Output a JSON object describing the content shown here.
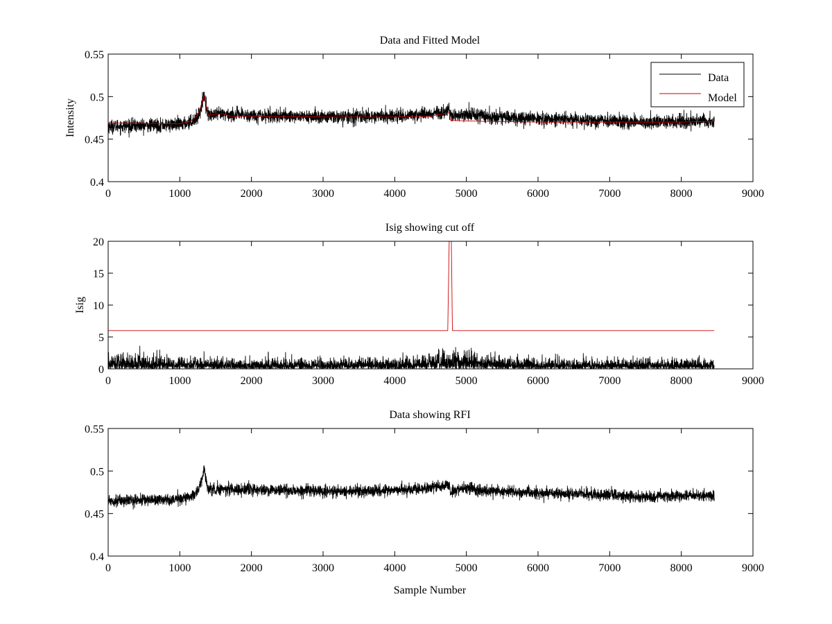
{
  "figure": {
    "background": "#ffffff",
    "data_color": "#000000",
    "model_color": "#cc0000"
  },
  "chart_data": [
    {
      "type": "line",
      "title": "Data and Fitted Model",
      "xlabel": "",
      "ylabel": "Intensity",
      "xlim": [
        0,
        9000
      ],
      "ylim": [
        0.4,
        0.55
      ],
      "xticks": [
        0,
        1000,
        2000,
        3000,
        4000,
        5000,
        6000,
        7000,
        8000,
        9000
      ],
      "yticks": [
        0.4,
        0.45,
        0.5,
        0.55
      ],
      "xtick_labels": [
        "0",
        "1000",
        "2000",
        "3000",
        "4000",
        "5000",
        "6000",
        "7000",
        "8000",
        "9000"
      ],
      "ytick_labels": [
        "0.4",
        "0.45",
        "0.5",
        "0.55"
      ],
      "grid": false,
      "legend": {
        "placement": "top-right",
        "entries": [
          "Data",
          "Model"
        ]
      },
      "series": [
        {
          "name": "Data",
          "color": "#000000",
          "style": "noisy",
          "noise": 0.007,
          "x_range": [
            0,
            8460
          ],
          "envelope": [
            [
              0,
              0.465
            ],
            [
              500,
              0.466
            ],
            [
              1000,
              0.467
            ],
            [
              1150,
              0.47
            ],
            [
              1250,
              0.476
            ],
            [
              1300,
              0.487
            ],
            [
              1340,
              0.503
            ],
            [
              1370,
              0.488
            ],
            [
              1400,
              0.478
            ],
            [
              1600,
              0.479
            ],
            [
              2000,
              0.478
            ],
            [
              3000,
              0.476
            ],
            [
              4000,
              0.477
            ],
            [
              4500,
              0.48
            ],
            [
              4760,
              0.484
            ],
            [
              4780,
              0.476
            ],
            [
              5000,
              0.48
            ],
            [
              5200,
              0.477
            ],
            [
              6000,
              0.474
            ],
            [
              7000,
              0.472
            ],
            [
              7500,
              0.469
            ],
            [
              8000,
              0.471
            ],
            [
              8460,
              0.471
            ]
          ]
        },
        {
          "name": "Model",
          "color": "#cc0000",
          "style": "smooth",
          "x_range": [
            0,
            8460
          ],
          "envelope": [
            [
              0,
              0.469
            ],
            [
              1000,
              0.468
            ],
            [
              1150,
              0.471
            ],
            [
              1250,
              0.478
            ],
            [
              1300,
              0.49
            ],
            [
              1340,
              0.501
            ],
            [
              1370,
              0.488
            ],
            [
              1400,
              0.478
            ],
            [
              1600,
              0.48
            ],
            [
              1700,
              0.477
            ],
            [
              2000,
              0.477
            ],
            [
              3000,
              0.476
            ],
            [
              4000,
              0.476
            ],
            [
              4500,
              0.477
            ],
            [
              4760,
              0.481
            ],
            [
              4780,
              0.472
            ],
            [
              5200,
              0.471
            ],
            [
              6000,
              0.47
            ],
            [
              7000,
              0.47
            ],
            [
              8000,
              0.47
            ],
            [
              8460,
              0.471
            ]
          ]
        }
      ]
    },
    {
      "type": "line",
      "title": "Isig showing cut off",
      "xlabel": "",
      "ylabel": "Isig",
      "xlim": [
        0,
        9000
      ],
      "ylim": [
        0,
        20
      ],
      "xticks": [
        0,
        1000,
        2000,
        3000,
        4000,
        5000,
        6000,
        7000,
        8000,
        9000
      ],
      "yticks": [
        0,
        5,
        10,
        15,
        20
      ],
      "xtick_labels": [
        "0",
        "1000",
        "2000",
        "3000",
        "4000",
        "5000",
        "6000",
        "7000",
        "8000",
        "9000"
      ],
      "ytick_labels": [
        "0",
        "5",
        "10",
        "15",
        "20"
      ],
      "grid": false,
      "series": [
        {
          "color": "#000000",
          "style": "abs_noise",
          "noise": 0.9,
          "x_range": [
            0,
            8460
          ],
          "envelope": [
            [
              0,
              1.1
            ],
            [
              1000,
              0.9
            ],
            [
              2000,
              0.7
            ],
            [
              3000,
              0.7
            ],
            [
              4000,
              0.8
            ],
            [
              4600,
              1.1
            ],
            [
              5000,
              1.6
            ],
            [
              5300,
              1.0
            ],
            [
              6000,
              0.8
            ],
            [
              7000,
              0.7
            ],
            [
              8460,
              0.7
            ]
          ]
        },
        {
          "color": "#cc0000",
          "style": "polyline",
          "points": [
            [
              0,
              6
            ],
            [
              4740,
              6
            ],
            [
              4760,
              20
            ],
            [
              4790,
              20
            ],
            [
              4805,
              6
            ],
            [
              8460,
              6
            ]
          ]
        }
      ]
    },
    {
      "type": "line",
      "title": "Data showing RFI",
      "xlabel": "Sample Number",
      "ylabel": "",
      "xlim": [
        0,
        9000
      ],
      "ylim": [
        0.4,
        0.55
      ],
      "xticks": [
        0,
        1000,
        2000,
        3000,
        4000,
        5000,
        6000,
        7000,
        8000,
        9000
      ],
      "yticks": [
        0.4,
        0.45,
        0.5,
        0.55
      ],
      "xtick_labels": [
        "0",
        "1000",
        "2000",
        "3000",
        "4000",
        "5000",
        "6000",
        "7000",
        "8000",
        "9000"
      ],
      "ytick_labels": [
        "0.4",
        "0.45",
        "0.5",
        "0.55"
      ],
      "grid": false,
      "series": [
        {
          "color": "#000000",
          "style": "noisy",
          "noise": 0.006,
          "x_range": [
            0,
            8460
          ],
          "envelope": [
            [
              0,
              0.465
            ],
            [
              500,
              0.466
            ],
            [
              1000,
              0.467
            ],
            [
              1150,
              0.47
            ],
            [
              1250,
              0.476
            ],
            [
              1300,
              0.487
            ],
            [
              1340,
              0.503
            ],
            [
              1370,
              0.488
            ],
            [
              1400,
              0.478
            ],
            [
              1600,
              0.479
            ],
            [
              2000,
              0.478
            ],
            [
              3000,
              0.476
            ],
            [
              4000,
              0.477
            ],
            [
              4500,
              0.48
            ],
            [
              4760,
              0.484
            ],
            [
              4780,
              0.476
            ],
            [
              5000,
              0.48
            ],
            [
              5200,
              0.477
            ],
            [
              6000,
              0.474
            ],
            [
              7000,
              0.472
            ],
            [
              7500,
              0.469
            ],
            [
              8000,
              0.471
            ],
            [
              8460,
              0.471
            ]
          ]
        }
      ]
    }
  ]
}
